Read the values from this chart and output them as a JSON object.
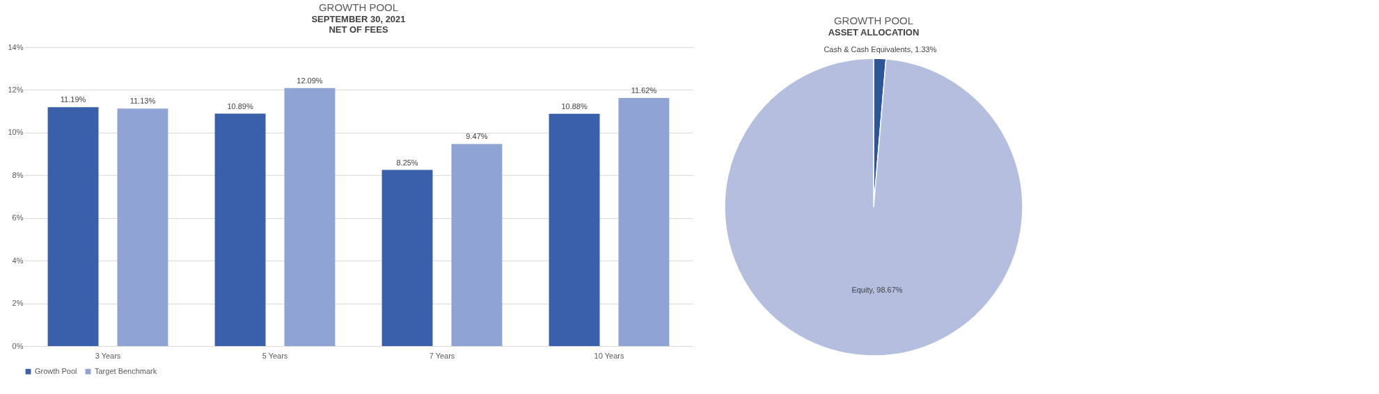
{
  "chart_data": [
    {
      "type": "bar",
      "title": "GROWTH POOL",
      "subtitle": "SEPTEMBER 30, 2021",
      "annotations": [
        "NET OF FEES"
      ],
      "categories": [
        "3 Years",
        "5 Years",
        "7 Years",
        "10 Years"
      ],
      "series": [
        {
          "name": "Growth Pool",
          "color": "#3a5fab",
          "values": [
            11.19,
            10.89,
            8.25,
            10.88
          ],
          "value_labels": [
            "11.19%",
            "10.89%",
            "8.25%",
            "10.88%"
          ]
        },
        {
          "name": "Target Benchmark",
          "color": "#8fa4d4",
          "values": [
            11.13,
            12.09,
            9.47,
            11.62
          ],
          "value_labels": [
            "11.13%",
            "12.09%",
            "9.47%",
            "11.62%"
          ]
        }
      ],
      "ylim": [
        0,
        14
      ],
      "yticks": [
        {
          "value": 0,
          "label": "0%"
        },
        {
          "value": 2,
          "label": "2%"
        },
        {
          "value": 4,
          "label": "4%"
        },
        {
          "value": 6,
          "label": "6%"
        },
        {
          "value": 8,
          "label": "8%"
        },
        {
          "value": 10,
          "label": "10%"
        },
        {
          "value": 12,
          "label": "12%"
        },
        {
          "value": 14,
          "label": "14%"
        }
      ],
      "grid": "y",
      "legend": "bottom"
    },
    {
      "type": "pie",
      "title": "GROWTH POOL",
      "subtitle": "ASSET ALLOCATION",
      "categories": [
        "Cash & Cash Equivalents",
        "Equity"
      ],
      "values": [
        1.33,
        98.67
      ],
      "colors": [
        "#2f5597",
        "#b4bfdf"
      ],
      "value_labels": [
        "1.33%",
        "98.67%"
      ],
      "legend": false
    }
  ]
}
